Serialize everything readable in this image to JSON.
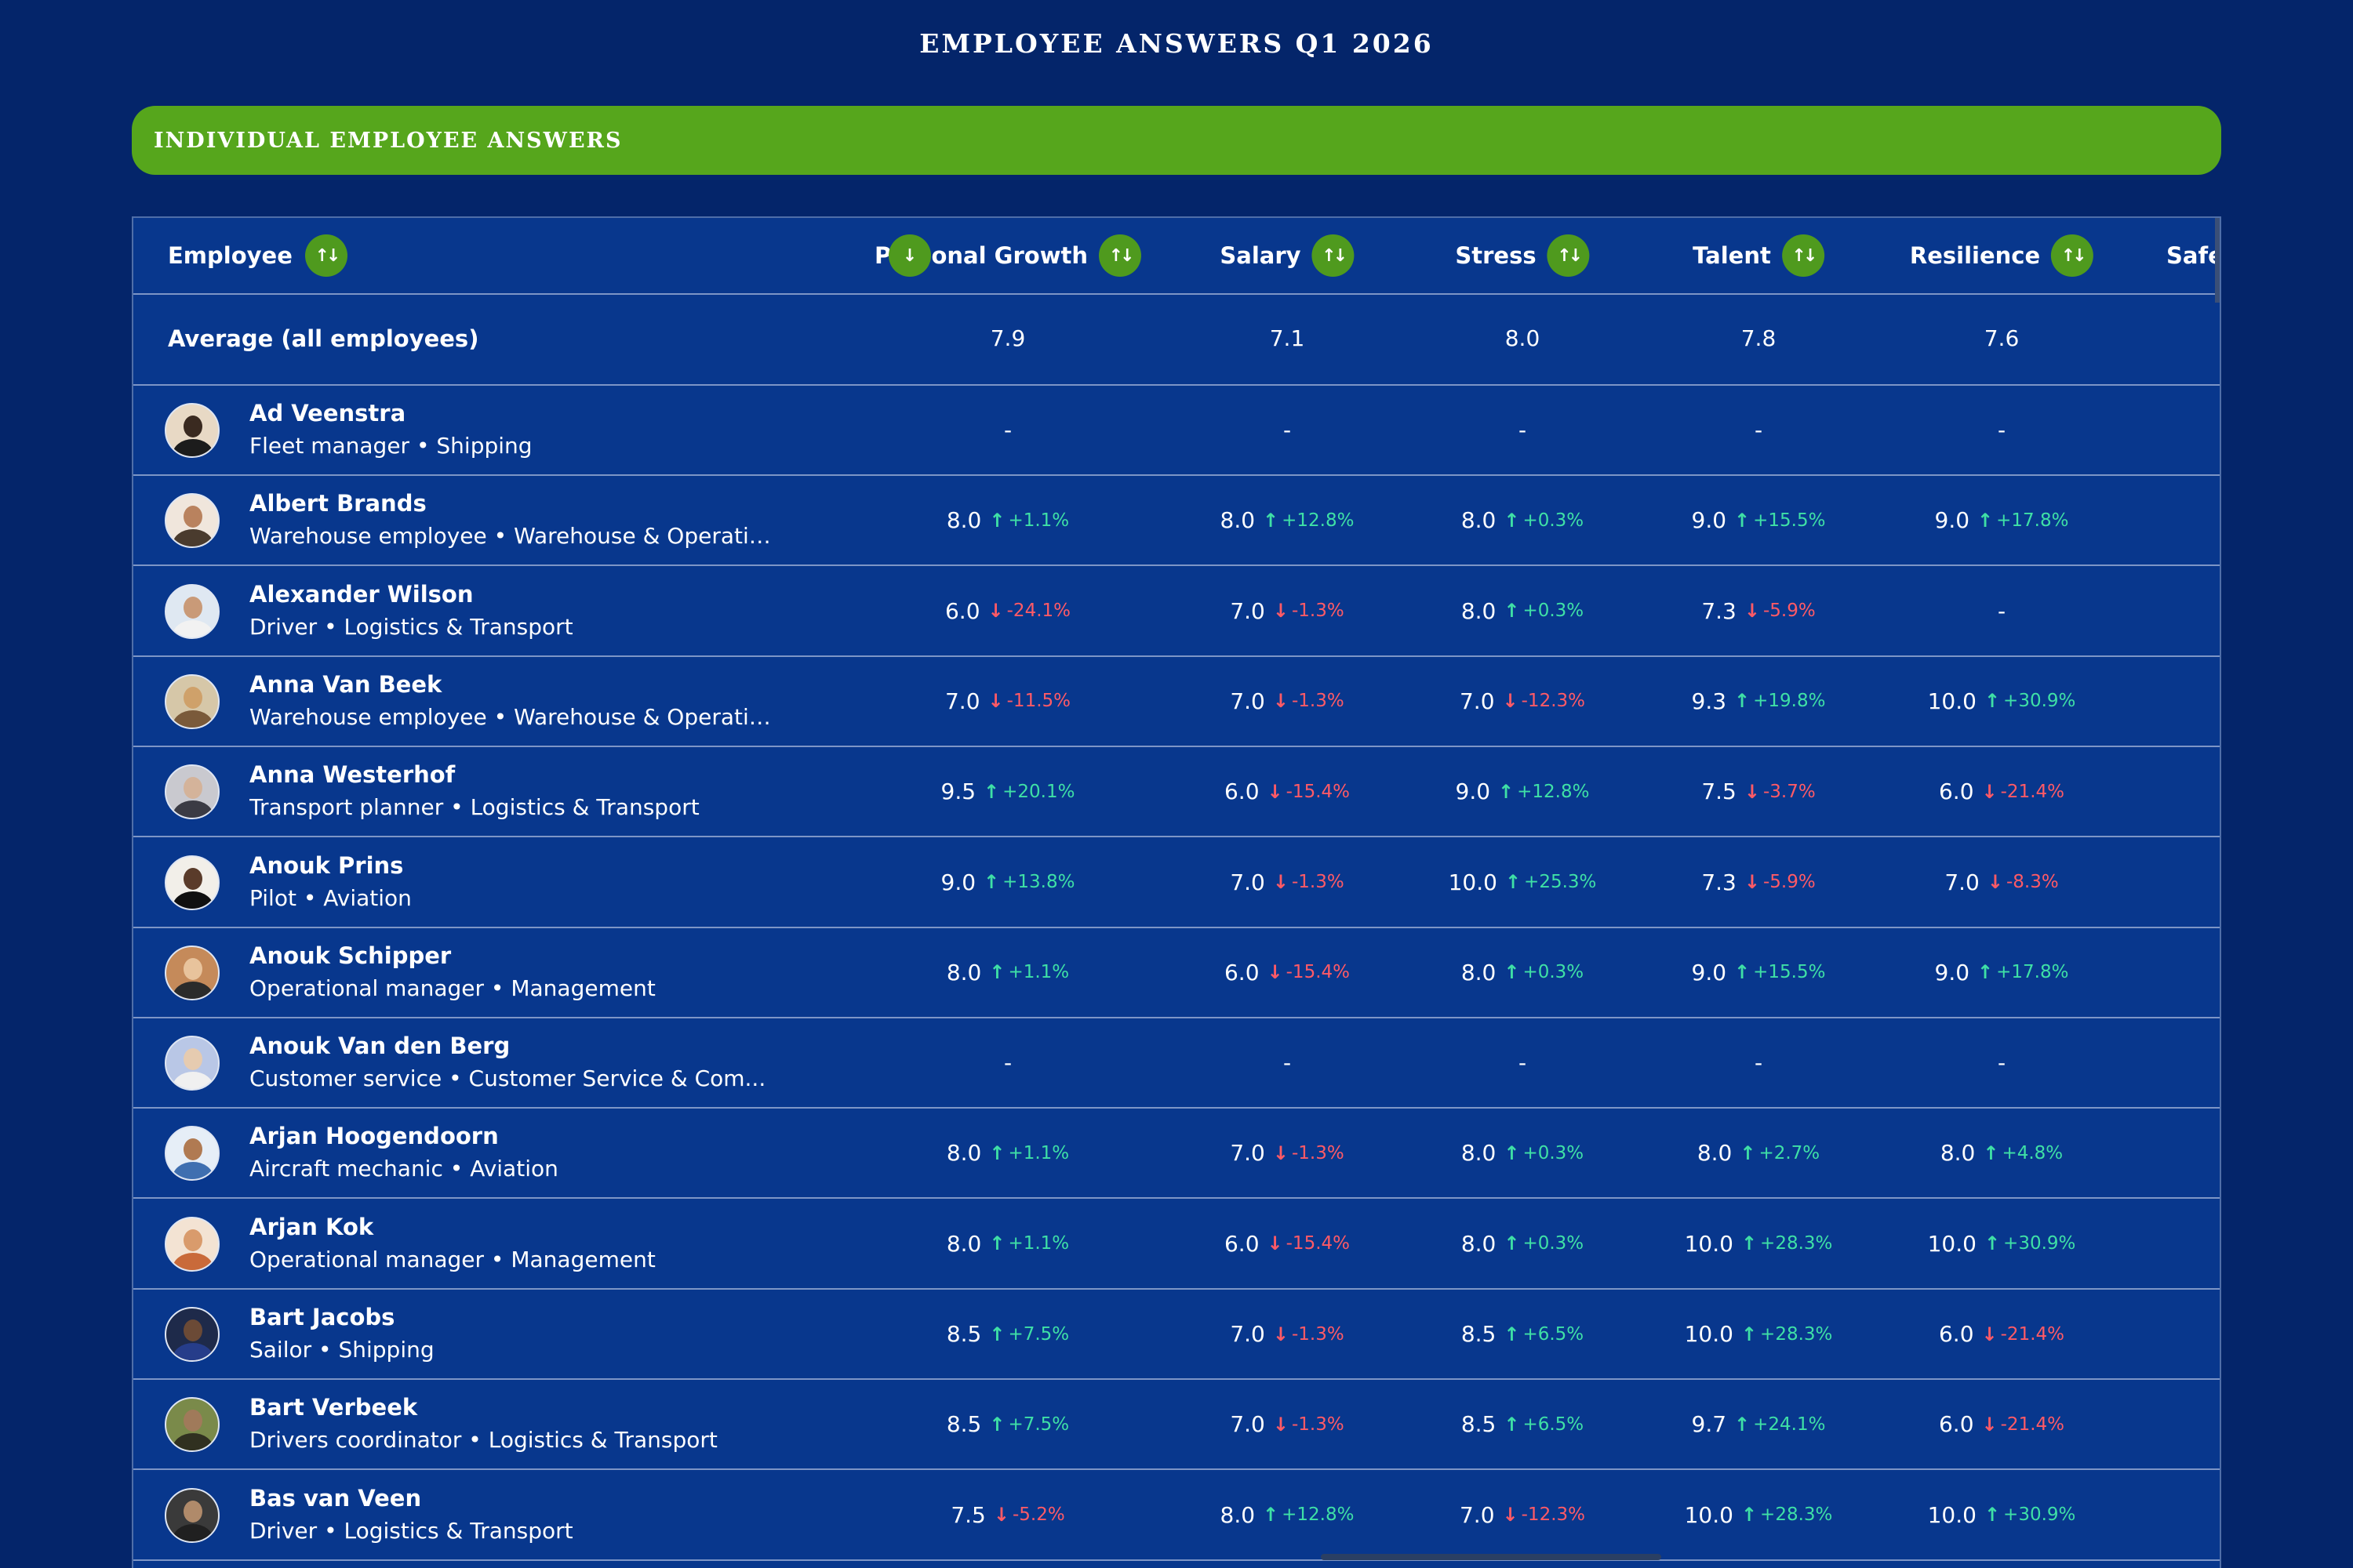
{
  "page": {
    "title": "EMPLOYEE ANSWERS Q1 2026"
  },
  "section": {
    "title": "INDIVIDUAL EMPLOYEE ANSWERS"
  },
  "table": {
    "employee_header": "Employee",
    "sort_icon": "sort-arrows-icon",
    "columns": [
      {
        "key": "personal_growth",
        "label": "Personal Growth"
      },
      {
        "key": "salary",
        "label": "Salary"
      },
      {
        "key": "stress",
        "label": "Stress"
      },
      {
        "key": "talent",
        "label": "Talent"
      },
      {
        "key": "resilience",
        "label": "Resilience"
      },
      {
        "key": "safety",
        "label": "Safet"
      }
    ],
    "average": {
      "label": "Average (all employees)",
      "values": [
        "7.9",
        "7.1",
        "8.0",
        "7.8",
        "7.6"
      ]
    },
    "rows": [
      {
        "name": "Ad Veenstra",
        "role": "Fleet manager",
        "department": "Shipping",
        "cells": [
          {
            "v": "-"
          },
          {
            "v": "-"
          },
          {
            "v": "-"
          },
          {
            "v": "-"
          },
          {
            "v": "-"
          }
        ]
      },
      {
        "name": "Albert Brands",
        "role": "Warehouse employee",
        "department": "Warehouse & Operatio...",
        "cells": [
          {
            "v": "8.0",
            "d": "+1.1%",
            "dir": "up"
          },
          {
            "v": "8.0",
            "d": "+12.8%",
            "dir": "up"
          },
          {
            "v": "8.0",
            "d": "+0.3%",
            "dir": "up"
          },
          {
            "v": "9.0",
            "d": "+15.5%",
            "dir": "up"
          },
          {
            "v": "9.0",
            "d": "+17.8%",
            "dir": "up"
          }
        ]
      },
      {
        "name": "Alexander Wilson",
        "role": "Driver",
        "department": "Logistics & Transport",
        "cells": [
          {
            "v": "6.0",
            "d": "-24.1%",
            "dir": "down"
          },
          {
            "v": "7.0",
            "d": "-1.3%",
            "dir": "down"
          },
          {
            "v": "8.0",
            "d": "+0.3%",
            "dir": "up"
          },
          {
            "v": "7.3",
            "d": "-5.9%",
            "dir": "down"
          },
          {
            "v": "-"
          }
        ]
      },
      {
        "name": "Anna Van Beek",
        "role": "Warehouse employee",
        "department": "Warehouse & Operatio...",
        "cells": [
          {
            "v": "7.0",
            "d": "-11.5%",
            "dir": "down"
          },
          {
            "v": "7.0",
            "d": "-1.3%",
            "dir": "down"
          },
          {
            "v": "7.0",
            "d": "-12.3%",
            "dir": "down"
          },
          {
            "v": "9.3",
            "d": "+19.8%",
            "dir": "up"
          },
          {
            "v": "10.0",
            "d": "+30.9%",
            "dir": "up"
          }
        ]
      },
      {
        "name": "Anna Westerhof",
        "role": "Transport planner",
        "department": "Logistics & Transport",
        "cells": [
          {
            "v": "9.5",
            "d": "+20.1%",
            "dir": "up"
          },
          {
            "v": "6.0",
            "d": "-15.4%",
            "dir": "down"
          },
          {
            "v": "9.0",
            "d": "+12.8%",
            "dir": "up"
          },
          {
            "v": "7.5",
            "d": "-3.7%",
            "dir": "down"
          },
          {
            "v": "6.0",
            "d": "-21.4%",
            "dir": "down"
          }
        ]
      },
      {
        "name": "Anouk Prins",
        "role": "Pilot",
        "department": "Aviation",
        "cells": [
          {
            "v": "9.0",
            "d": "+13.8%",
            "dir": "up"
          },
          {
            "v": "7.0",
            "d": "-1.3%",
            "dir": "down"
          },
          {
            "v": "10.0",
            "d": "+25.3%",
            "dir": "up"
          },
          {
            "v": "7.3",
            "d": "-5.9%",
            "dir": "down"
          },
          {
            "v": "7.0",
            "d": "-8.3%",
            "dir": "down"
          }
        ]
      },
      {
        "name": "Anouk Schipper",
        "role": "Operational manager",
        "department": "Management",
        "cells": [
          {
            "v": "8.0",
            "d": "+1.1%",
            "dir": "up"
          },
          {
            "v": "6.0",
            "d": "-15.4%",
            "dir": "down"
          },
          {
            "v": "8.0",
            "d": "+0.3%",
            "dir": "up"
          },
          {
            "v": "9.0",
            "d": "+15.5%",
            "dir": "up"
          },
          {
            "v": "9.0",
            "d": "+17.8%",
            "dir": "up"
          }
        ]
      },
      {
        "name": "Anouk Van den Berg",
        "role": "Customer service",
        "department": "Customer Service & Com...",
        "cells": [
          {
            "v": "-"
          },
          {
            "v": "-"
          },
          {
            "v": "-"
          },
          {
            "v": "-"
          },
          {
            "v": "-"
          }
        ]
      },
      {
        "name": "Arjan Hoogendoorn",
        "role": "Aircraft mechanic",
        "department": "Aviation",
        "cells": [
          {
            "v": "8.0",
            "d": "+1.1%",
            "dir": "up"
          },
          {
            "v": "7.0",
            "d": "-1.3%",
            "dir": "down"
          },
          {
            "v": "8.0",
            "d": "+0.3%",
            "dir": "up"
          },
          {
            "v": "8.0",
            "d": "+2.7%",
            "dir": "up"
          },
          {
            "v": "8.0",
            "d": "+4.8%",
            "dir": "up"
          }
        ]
      },
      {
        "name": "Arjan Kok",
        "role": "Operational manager",
        "department": "Management",
        "cells": [
          {
            "v": "8.0",
            "d": "+1.1%",
            "dir": "up"
          },
          {
            "v": "6.0",
            "d": "-15.4%",
            "dir": "down"
          },
          {
            "v": "8.0",
            "d": "+0.3%",
            "dir": "up"
          },
          {
            "v": "10.0",
            "d": "+28.3%",
            "dir": "up"
          },
          {
            "v": "10.0",
            "d": "+30.9%",
            "dir": "up"
          }
        ]
      },
      {
        "name": "Bart Jacobs",
        "role": "Sailor",
        "department": "Shipping",
        "cells": [
          {
            "v": "8.5",
            "d": "+7.5%",
            "dir": "up"
          },
          {
            "v": "7.0",
            "d": "-1.3%",
            "dir": "down"
          },
          {
            "v": "8.5",
            "d": "+6.5%",
            "dir": "up"
          },
          {
            "v": "10.0",
            "d": "+28.3%",
            "dir": "up"
          },
          {
            "v": "6.0",
            "d": "-21.4%",
            "dir": "down"
          }
        ]
      },
      {
        "name": "Bart Verbeek",
        "role": "Drivers coordinator",
        "department": "Logistics & Transport",
        "cells": [
          {
            "v": "8.5",
            "d": "+7.5%",
            "dir": "up"
          },
          {
            "v": "7.0",
            "d": "-1.3%",
            "dir": "down"
          },
          {
            "v": "8.5",
            "d": "+6.5%",
            "dir": "up"
          },
          {
            "v": "9.7",
            "d": "+24.1%",
            "dir": "up"
          },
          {
            "v": "6.0",
            "d": "-21.4%",
            "dir": "down"
          }
        ]
      },
      {
        "name": "Bas van Veen",
        "role": "Driver",
        "department": "Logistics & Transport",
        "cells": [
          {
            "v": "7.5",
            "d": "-5.2%",
            "dir": "down"
          },
          {
            "v": "8.0",
            "d": "+12.8%",
            "dir": "up"
          },
          {
            "v": "7.0",
            "d": "-12.3%",
            "dir": "down"
          },
          {
            "v": "10.0",
            "d": "+28.3%",
            "dir": "up"
          },
          {
            "v": "10.0",
            "d": "+30.9%",
            "dir": "up"
          }
        ]
      }
    ]
  }
}
